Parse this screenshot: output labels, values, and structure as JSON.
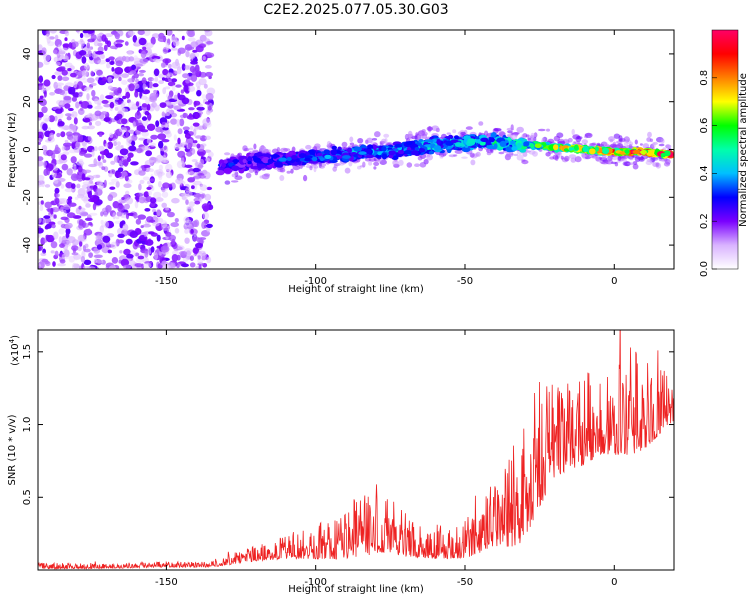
{
  "title": "C2E2.2025.077.05.30.G03",
  "chart_data": [
    {
      "type": "heatmap",
      "xlabel": "Height of straight line (km)",
      "ylabel": "Frequency (Hz)",
      "xlim": [
        -193,
        20
      ],
      "ylim": [
        -50,
        50
      ],
      "xticks": [
        -150,
        -100,
        -50,
        0
      ],
      "yticks": [
        -40,
        -20,
        0,
        20,
        40
      ],
      "colorbar": {
        "label": "Normalized spectral amplitude",
        "range": [
          0,
          1
        ],
        "ticks": [
          "0.0",
          "0.2",
          "0.4",
          "0.6",
          "0.8"
        ],
        "colors": [
          "#ffffff",
          "#d9b3ff",
          "#7a00ff",
          "#0000ff",
          "#00bfff",
          "#00ffaa",
          "#00ff00",
          "#ffff00",
          "#ff8000",
          "#ff0000",
          "#ff0066"
        ]
      },
      "noise_region_x": [
        -193,
        -135
      ],
      "ridge": {
        "x": [
          -132,
          -120,
          -110,
          -100,
          -90,
          -80,
          -70,
          -60,
          -50,
          -40,
          -30,
          -20,
          -10,
          0,
          10,
          19
        ],
        "freq": [
          -7,
          -5,
          -4,
          -3,
          -2,
          -1,
          0,
          2,
          3,
          3,
          2,
          1,
          0,
          -1,
          -1,
          -2
        ],
        "amplitude": [
          0.3,
          0.3,
          0.35,
          0.35,
          0.4,
          0.4,
          0.4,
          0.45,
          0.45,
          0.5,
          0.55,
          0.7,
          0.8,
          0.9,
          0.95,
          1.0
        ]
      }
    },
    {
      "type": "line",
      "xlabel": "Height of straight line (km)",
      "ylabel": "SNR (10 * v/v)",
      "y_exponent_label": "(x10",
      "y_exponent": "4",
      "xlim": [
        -193,
        20
      ],
      "ylim": [
        0,
        1.65
      ],
      "xticks": [
        -150,
        -100,
        -50,
        0
      ],
      "yticks": [
        0.5,
        1.0,
        1.5
      ],
      "ytick_labels": [
        "0.5",
        "1.0",
        "1.5"
      ],
      "color": "#ee2222",
      "envelope": {
        "x": [
          -193,
          -170,
          -150,
          -135,
          -128,
          -120,
          -110,
          -100,
          -90,
          -85,
          -80,
          -75,
          -70,
          -60,
          -50,
          -40,
          -35,
          -30,
          -28,
          -25,
          -20,
          -15,
          -10,
          -5,
          0,
          5,
          10,
          15,
          20
        ],
        "base": [
          0.02,
          0.02,
          0.03,
          0.03,
          0.06,
          0.09,
          0.12,
          0.14,
          0.18,
          0.22,
          0.25,
          0.22,
          0.18,
          0.14,
          0.15,
          0.28,
          0.35,
          0.45,
          0.55,
          0.65,
          0.8,
          0.85,
          0.9,
          0.95,
          0.95,
          1.0,
          1.0,
          1.05,
          1.1
        ],
        "amp": [
          0.03,
          0.03,
          0.03,
          0.03,
          0.06,
          0.08,
          0.12,
          0.18,
          0.3,
          0.4,
          0.38,
          0.28,
          0.25,
          0.18,
          0.2,
          0.35,
          0.55,
          0.75,
          0.7,
          0.6,
          0.55,
          0.45,
          0.5,
          0.45,
          0.45,
          0.6,
          0.5,
          0.35,
          0.25
        ]
      }
    }
  ]
}
